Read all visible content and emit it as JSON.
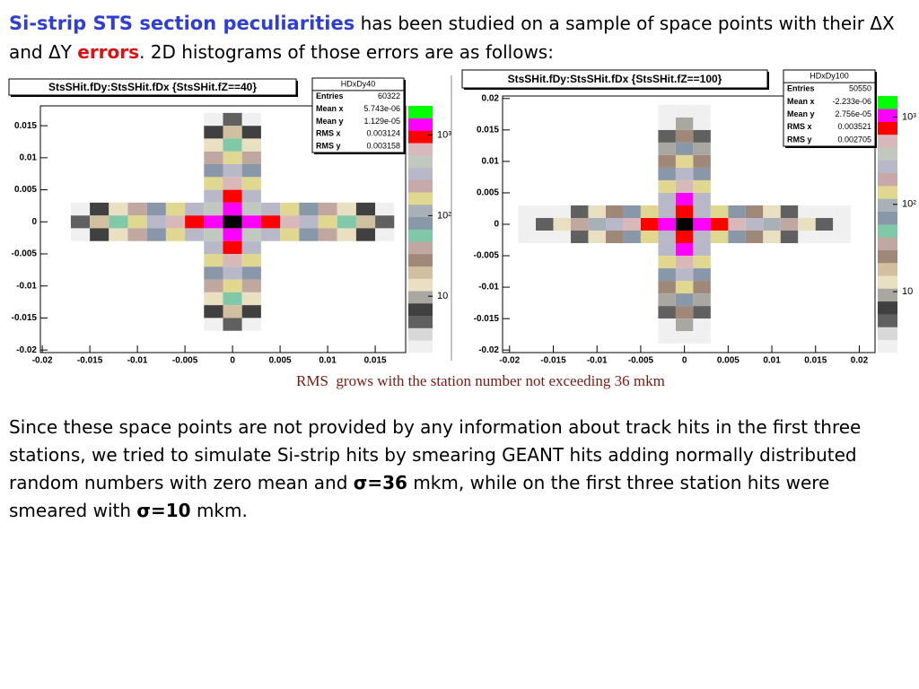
{
  "intro": {
    "lead": "Si-strip STS section peculiarities",
    "text1": "has been studied on a sample of space points with their ΔX and ΔY",
    "emphasis": "errors",
    "text2": ". 2D histograms of those errors are as follows:"
  },
  "chart_data": [
    {
      "type": "heatmap",
      "title": "StsSHit.fDy:StsSHit.fDx {StsSHit.fZ==40}",
      "stats": {
        "name": "HDxDy40",
        "rows": [
          [
            "Entries",
            "60322"
          ],
          [
            "Mean x",
            "5.743e-06"
          ],
          [
            "Mean y",
            "1.129e-05"
          ],
          [
            "RMS x",
            "0.003124"
          ],
          [
            "RMS y",
            "0.003158"
          ]
        ]
      },
      "xlim": [
        -0.0202,
        0.0182
      ],
      "ylim": [
        -0.0204,
        0.0181
      ],
      "xticks": [
        -0.02,
        -0.015,
        -0.01,
        -0.005,
        0,
        0.005,
        0.01,
        0.015
      ],
      "yticks": [
        -0.02,
        -0.015,
        -0.01,
        -0.005,
        0,
        0.005,
        0.01,
        0.015
      ],
      "zlim": [
        2,
        2300
      ],
      "log_z": true,
      "zticks": [
        10,
        {
          "value": 100,
          "label": "10²"
        },
        {
          "value": 1000,
          "label": "10³"
        }
      ],
      "palette": [
        "#f0f0f0",
        "#d8d8d8",
        "#606060",
        "#404040",
        "#a8a8a0",
        "#e8e0c0",
        "#d0c0a0",
        "#a08878",
        "#c0a8a0",
        "#80c8a8",
        "#8898a8",
        "#a8b0b8",
        "#e0d890",
        "#c8a8a8",
        "#b8b8c8",
        "#c0c8c0",
        "#d8b8b8",
        "#ff0000",
        "#ff00ff",
        "#00ff00"
      ],
      "cells": [
        [
          -0.016,
          0,
          5
        ],
        [
          -0.014,
          0,
          20
        ],
        [
          -0.012,
          0,
          60
        ],
        [
          -0.01,
          0,
          150
        ],
        [
          -0.008,
          0,
          300
        ],
        [
          -0.006,
          0,
          600
        ],
        [
          -0.004,
          0,
          900
        ],
        [
          -0.002,
          0,
          1200
        ],
        [
          0,
          0,
          2500
        ],
        [
          0.002,
          0,
          1200
        ],
        [
          0.004,
          0,
          900
        ],
        [
          0.006,
          0,
          600
        ],
        [
          0.008,
          0,
          300
        ],
        [
          0.01,
          0,
          150
        ],
        [
          0.012,
          0,
          60
        ],
        [
          0.014,
          0,
          20
        ],
        [
          0.016,
          0,
          5
        ],
        [
          -0.016,
          0.002,
          2
        ],
        [
          -0.014,
          0.002,
          6
        ],
        [
          -0.012,
          0.002,
          15
        ],
        [
          -0.01,
          0.002,
          40
        ],
        [
          -0.008,
          0.002,
          80
        ],
        [
          -0.006,
          0.002,
          150
        ],
        [
          -0.004,
          0.002,
          300
        ],
        [
          -0.002,
          0.002,
          500
        ],
        [
          0,
          0.002,
          1200
        ],
        [
          0.002,
          0.002,
          500
        ],
        [
          0.004,
          0.002,
          300
        ],
        [
          0.006,
          0.002,
          150
        ],
        [
          0.008,
          0.002,
          80
        ],
        [
          0.01,
          0.002,
          40
        ],
        [
          0.012,
          0.002,
          15
        ],
        [
          0.014,
          0.002,
          6
        ],
        [
          0.016,
          0.002,
          2
        ],
        [
          -0.016,
          -0.002,
          2
        ],
        [
          -0.014,
          -0.002,
          6
        ],
        [
          -0.012,
          -0.002,
          15
        ],
        [
          -0.01,
          -0.002,
          40
        ],
        [
          -0.008,
          -0.002,
          80
        ],
        [
          -0.006,
          -0.002,
          150
        ],
        [
          -0.004,
          -0.002,
          300
        ],
        [
          -0.002,
          -0.002,
          500
        ],
        [
          0,
          -0.002,
          1200
        ],
        [
          0.002,
          -0.002,
          500
        ],
        [
          0.004,
          -0.002,
          300
        ],
        [
          0.006,
          -0.002,
          150
        ],
        [
          0.008,
          -0.002,
          80
        ],
        [
          0.01,
          -0.002,
          40
        ],
        [
          0.012,
          -0.002,
          15
        ],
        [
          0.014,
          -0.002,
          6
        ],
        [
          0.016,
          -0.002,
          2
        ],
        [
          0,
          0.004,
          900
        ],
        [
          0,
          0.006,
          600
        ],
        [
          0,
          0.008,
          300
        ],
        [
          0,
          0.01,
          150
        ],
        [
          0,
          0.012,
          60
        ],
        [
          0,
          0.014,
          20
        ],
        [
          0,
          0.016,
          5
        ],
        [
          0,
          -0.004,
          900
        ],
        [
          0,
          -0.006,
          600
        ],
        [
          0,
          -0.008,
          300
        ],
        [
          0,
          -0.01,
          150
        ],
        [
          0,
          -0.012,
          60
        ],
        [
          0,
          -0.014,
          20
        ],
        [
          0,
          -0.016,
          5
        ],
        [
          -0.002,
          0.004,
          300
        ],
        [
          -0.002,
          0.006,
          150
        ],
        [
          -0.002,
          0.008,
          80
        ],
        [
          -0.002,
          0.01,
          40
        ],
        [
          -0.002,
          0.012,
          15
        ],
        [
          -0.002,
          0.014,
          6
        ],
        [
          -0.002,
          0.016,
          2
        ],
        [
          0.002,
          0.004,
          300
        ],
        [
          0.002,
          0.006,
          150
        ],
        [
          0.002,
          0.008,
          80
        ],
        [
          0.002,
          0.01,
          40
        ],
        [
          0.002,
          0.012,
          15
        ],
        [
          0.002,
          0.014,
          6
        ],
        [
          0.002,
          0.016,
          2
        ],
        [
          -0.002,
          -0.004,
          300
        ],
        [
          -0.002,
          -0.006,
          150
        ],
        [
          -0.002,
          -0.008,
          80
        ],
        [
          -0.002,
          -0.01,
          40
        ],
        [
          -0.002,
          -0.012,
          15
        ],
        [
          -0.002,
          -0.014,
          6
        ],
        [
          -0.002,
          -0.016,
          2
        ],
        [
          0.002,
          -0.004,
          300
        ],
        [
          0.002,
          -0.006,
          150
        ],
        [
          0.002,
          -0.008,
          80
        ],
        [
          0.002,
          -0.01,
          40
        ],
        [
          0.002,
          -0.012,
          15
        ],
        [
          0.002,
          -0.014,
          6
        ],
        [
          0.002,
          -0.016,
          2
        ]
      ]
    },
    {
      "type": "heatmap",
      "title": "StsSHit.fDy:StsSHit.fDx {StsSHit.fZ==100}",
      "stats": {
        "name": "HDxDy100",
        "rows": [
          [
            "Entries",
            "50550"
          ],
          [
            "Mean x",
            "-2.233e-06"
          ],
          [
            "Mean y",
            "2.756e-05"
          ],
          [
            "RMS x",
            "0.003521"
          ],
          [
            "RMS y",
            "0.002705"
          ]
        ]
      },
      "xlim": [
        -0.0208,
        0.0218
      ],
      "ylim": [
        -0.0204,
        0.0204
      ],
      "xticks": [
        -0.02,
        -0.015,
        -0.01,
        -0.005,
        0,
        0.005,
        0.01,
        0.015,
        0.02
      ],
      "yticks": [
        -0.02,
        -0.015,
        -0.01,
        -0.005,
        0,
        0.005,
        0.01,
        0.015,
        0.02
      ],
      "zlim": [
        2,
        1750
      ],
      "log_z": true,
      "zticks": [
        10,
        {
          "value": 100,
          "label": "10²"
        },
        {
          "value": 1000,
          "label": "10³"
        }
      ],
      "palette": [
        "#f0f0f0",
        "#d8d8d8",
        "#606060",
        "#404040",
        "#a8a8a0",
        "#e8e0c0",
        "#d0c0a0",
        "#a08878",
        "#c0a8a0",
        "#80c8a8",
        "#8898a8",
        "#a8b0b8",
        "#e0d890",
        "#c8a8a8",
        "#b8b8c8",
        "#c0c8c0",
        "#d8b8b8",
        "#ff0000",
        "#ff00ff",
        "#00ff00"
      ],
      "cells": [
        [
          -0.018,
          0,
          2
        ],
        [
          -0.016,
          0,
          5
        ],
        [
          -0.014,
          0,
          15
        ],
        [
          -0.012,
          0,
          40
        ],
        [
          -0.01,
          0,
          100
        ],
        [
          -0.008,
          0,
          250
        ],
        [
          -0.006,
          0,
          500
        ],
        [
          -0.004,
          0,
          800
        ],
        [
          -0.002,
          0,
          1000
        ],
        [
          0,
          0,
          2200
        ],
        [
          0.002,
          0,
          1000
        ],
        [
          0.004,
          0,
          800
        ],
        [
          0.006,
          0,
          500
        ],
        [
          0.008,
          0,
          250
        ],
        [
          0.01,
          0,
          100
        ],
        [
          0.012,
          0,
          40
        ],
        [
          0.014,
          0,
          15
        ],
        [
          0.016,
          0,
          5
        ],
        [
          0.018,
          0,
          2
        ],
        [
          -0.018,
          0.002,
          1
        ],
        [
          -0.016,
          0.002,
          1
        ],
        [
          -0.014,
          0.002,
          2
        ],
        [
          -0.012,
          0.002,
          5
        ],
        [
          -0.01,
          0.002,
          12
        ],
        [
          -0.008,
          0.002,
          30
        ],
        [
          -0.006,
          0.002,
          70
        ],
        [
          -0.004,
          0.002,
          150
        ],
        [
          -0.002,
          0.002,
          300
        ],
        [
          0,
          0.002,
          800
        ],
        [
          0.002,
          0.002,
          300
        ],
        [
          0.004,
          0.002,
          150
        ],
        [
          0.006,
          0.002,
          70
        ],
        [
          0.008,
          0.002,
          30
        ],
        [
          0.01,
          0.002,
          12
        ],
        [
          0.012,
          0.002,
          5
        ],
        [
          0.014,
          0.002,
          2
        ],
        [
          0.016,
          0.002,
          1
        ],
        [
          0.018,
          0.002,
          1
        ],
        [
          -0.018,
          -0.002,
          1
        ],
        [
          -0.016,
          -0.002,
          1
        ],
        [
          -0.014,
          -0.002,
          2
        ],
        [
          -0.012,
          -0.002,
          5
        ],
        [
          -0.01,
          -0.002,
          12
        ],
        [
          -0.008,
          -0.002,
          30
        ],
        [
          -0.006,
          -0.002,
          70
        ],
        [
          -0.004,
          -0.002,
          150
        ],
        [
          -0.002,
          -0.002,
          300
        ],
        [
          0,
          -0.002,
          800
        ],
        [
          0.002,
          -0.002,
          300
        ],
        [
          0.004,
          -0.002,
          150
        ],
        [
          0.006,
          -0.002,
          70
        ],
        [
          0.008,
          -0.002,
          30
        ],
        [
          0.01,
          -0.002,
          12
        ],
        [
          0.012,
          -0.002,
          5
        ],
        [
          0.014,
          -0.002,
          2
        ],
        [
          0.016,
          -0.002,
          1
        ],
        [
          0.018,
          -0.002,
          1
        ],
        [
          0,
          0.004,
          900
        ],
        [
          0,
          0.006,
          600
        ],
        [
          0,
          0.008,
          300
        ],
        [
          0,
          0.01,
          150
        ],
        [
          0,
          0.012,
          70
        ],
        [
          0,
          0.014,
          25
        ],
        [
          0,
          0.016,
          8
        ],
        [
          0,
          0.018,
          2
        ],
        [
          0,
          -0.004,
          900
        ],
        [
          0,
          -0.006,
          600
        ],
        [
          0,
          -0.008,
          300
        ],
        [
          0,
          -0.01,
          150
        ],
        [
          0,
          -0.012,
          70
        ],
        [
          0,
          -0.014,
          25
        ],
        [
          0,
          -0.016,
          8
        ],
        [
          0,
          -0.018,
          2
        ],
        [
          -0.002,
          0.004,
          250
        ],
        [
          -0.002,
          0.006,
          120
        ],
        [
          -0.002,
          0.008,
          60
        ],
        [
          -0.002,
          0.01,
          25
        ],
        [
          -0.002,
          0.012,
          10
        ],
        [
          -0.002,
          0.014,
          4
        ],
        [
          -0.002,
          0.016,
          2
        ],
        [
          -0.002,
          0.018,
          1
        ],
        [
          0.002,
          0.004,
          250
        ],
        [
          0.002,
          0.006,
          120
        ],
        [
          0.002,
          0.008,
          60
        ],
        [
          0.002,
          0.01,
          25
        ],
        [
          0.002,
          0.012,
          10
        ],
        [
          0.002,
          0.014,
          4
        ],
        [
          0.002,
          0.016,
          2
        ],
        [
          0.002,
          0.018,
          1
        ],
        [
          -0.002,
          -0.004,
          250
        ],
        [
          -0.002,
          -0.006,
          120
        ],
        [
          -0.002,
          -0.008,
          60
        ],
        [
          -0.002,
          -0.01,
          25
        ],
        [
          -0.002,
          -0.012,
          10
        ],
        [
          -0.002,
          -0.014,
          4
        ],
        [
          -0.002,
          -0.016,
          2
        ],
        [
          -0.002,
          -0.018,
          1
        ],
        [
          0.002,
          -0.004,
          250
        ],
        [
          0.002,
          -0.006,
          120
        ],
        [
          0.002,
          -0.008,
          60
        ],
        [
          0.002,
          -0.01,
          25
        ],
        [
          0.002,
          -0.012,
          10
        ],
        [
          0.002,
          -0.014,
          4
        ],
        [
          0.002,
          -0.016,
          2
        ],
        [
          0.002,
          -0.018,
          1
        ]
      ]
    }
  ],
  "caption": "RMS  grows with the station number not exceeding 36 mkm",
  "paragraph": {
    "text1": "Since these space points are not provided by any information about track hits in the first three stations, we tried to simulate Si-strip hits by smearing GEANT hits adding normally distributed random numbers with zero mean and",
    "sigma1": "σ=36",
    "text2": "mkm, while on the first three station hits were smeared with",
    "sigma2": "σ=10",
    "text3": "mkm."
  }
}
